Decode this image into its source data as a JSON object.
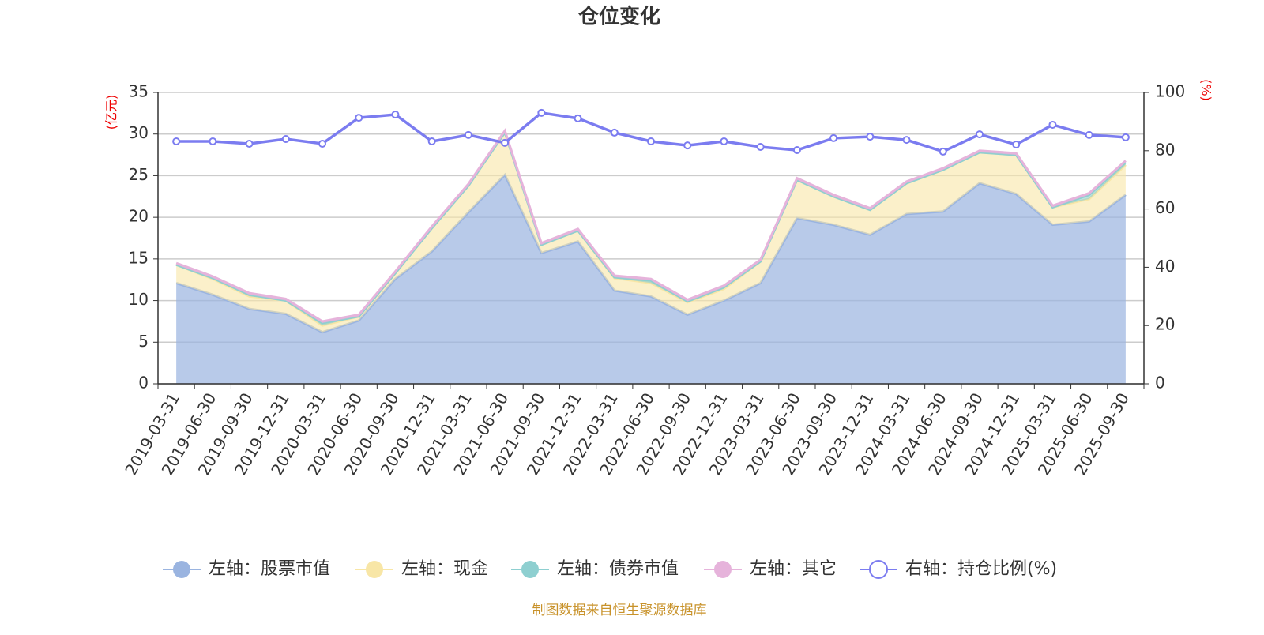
{
  "chart_data": {
    "type": "stacked-area-line",
    "title": "仓位变化",
    "y_label": "(亿元)",
    "y2_label": "(%)",
    "source": "制图数据来自恒生聚源数据库",
    "categories": [
      "2019-03-31",
      "2019-06-30",
      "2019-09-30",
      "2019-12-31",
      "2020-03-31",
      "2020-06-30",
      "2020-09-30",
      "2020-12-31",
      "2021-03-31",
      "2021-06-30",
      "2021-09-30",
      "2021-12-31",
      "2022-03-31",
      "2022-06-30",
      "2022-09-30",
      "2022-12-31",
      "2023-03-31",
      "2023-06-30",
      "2023-09-30",
      "2023-12-31",
      "2024-03-31",
      "2024-06-30",
      "2024-09-30",
      "2024-12-31",
      "2025-03-31",
      "2025-06-30",
      "2025-09-30"
    ],
    "ylim": [
      0,
      35
    ],
    "yticks": [
      0,
      5,
      10,
      15,
      20,
      25,
      30,
      35
    ],
    "y2lim": [
      0,
      100
    ],
    "y2ticks": [
      0,
      20,
      40,
      60,
      80,
      100
    ],
    "grid": true,
    "series": [
      {
        "name": "左轴：股票市值",
        "color": "#9ab4e0",
        "stack": true,
        "values": [
          12.1,
          10.7,
          9.0,
          8.4,
          6.2,
          7.6,
          12.6,
          15.9,
          20.6,
          25.1,
          15.7,
          17.1,
          11.2,
          10.5,
          8.3,
          10.0,
          12.1,
          19.9,
          19.1,
          17.9,
          20.4,
          20.7,
          24.1,
          22.8,
          19.1,
          19.5,
          22.7
        ]
      },
      {
        "name": "左轴：现金",
        "color": "#f8e6a6",
        "stack": true,
        "values": [
          2.2,
          1.9,
          1.5,
          1.6,
          0.8,
          0.5,
          0.7,
          2.8,
          3.2,
          5.1,
          1.0,
          1.3,
          1.5,
          1.6,
          1.5,
          1.4,
          2.6,
          4.6,
          3.4,
          3.0,
          3.7,
          5.0,
          3.7,
          4.7,
          2.1,
          2.7,
          3.6
        ]
      },
      {
        "name": "左轴：债券市值",
        "color": "#8ecfd0",
        "stack": true,
        "values": [
          0,
          0.1,
          0.2,
          0,
          0.3,
          0,
          0,
          0,
          0,
          0,
          0,
          0,
          0.1,
          0.3,
          0.1,
          0.2,
          0,
          0,
          0,
          0,
          0,
          0,
          0,
          0,
          0,
          0.5,
          0.3
        ]
      },
      {
        "name": "左轴：其它",
        "color": "#e6b3db",
        "stack": true,
        "values": [
          0.2,
          0.2,
          0.2,
          0.2,
          0.2,
          0.2,
          0.2,
          0.2,
          0.2,
          0.2,
          0.2,
          0.2,
          0.2,
          0.2,
          0.2,
          0.2,
          0.2,
          0.2,
          0.2,
          0.2,
          0.2,
          0.2,
          0.2,
          0.2,
          0.2,
          0.2,
          0.2
        ]
      },
      {
        "name": "右轴：持仓比例(%)",
        "color": "#7b7cf0",
        "axis": "y2",
        "values": [
          83.2,
          83.2,
          82.4,
          84.0,
          82.4,
          91.3,
          92.4,
          83.2,
          85.4,
          82.7,
          93.0,
          91.1,
          86.2,
          83.2,
          81.8,
          83.2,
          81.3,
          80.2,
          84.3,
          84.8,
          83.7,
          79.7,
          85.6,
          82.1,
          88.9,
          85.4,
          84.6
        ]
      }
    ]
  }
}
